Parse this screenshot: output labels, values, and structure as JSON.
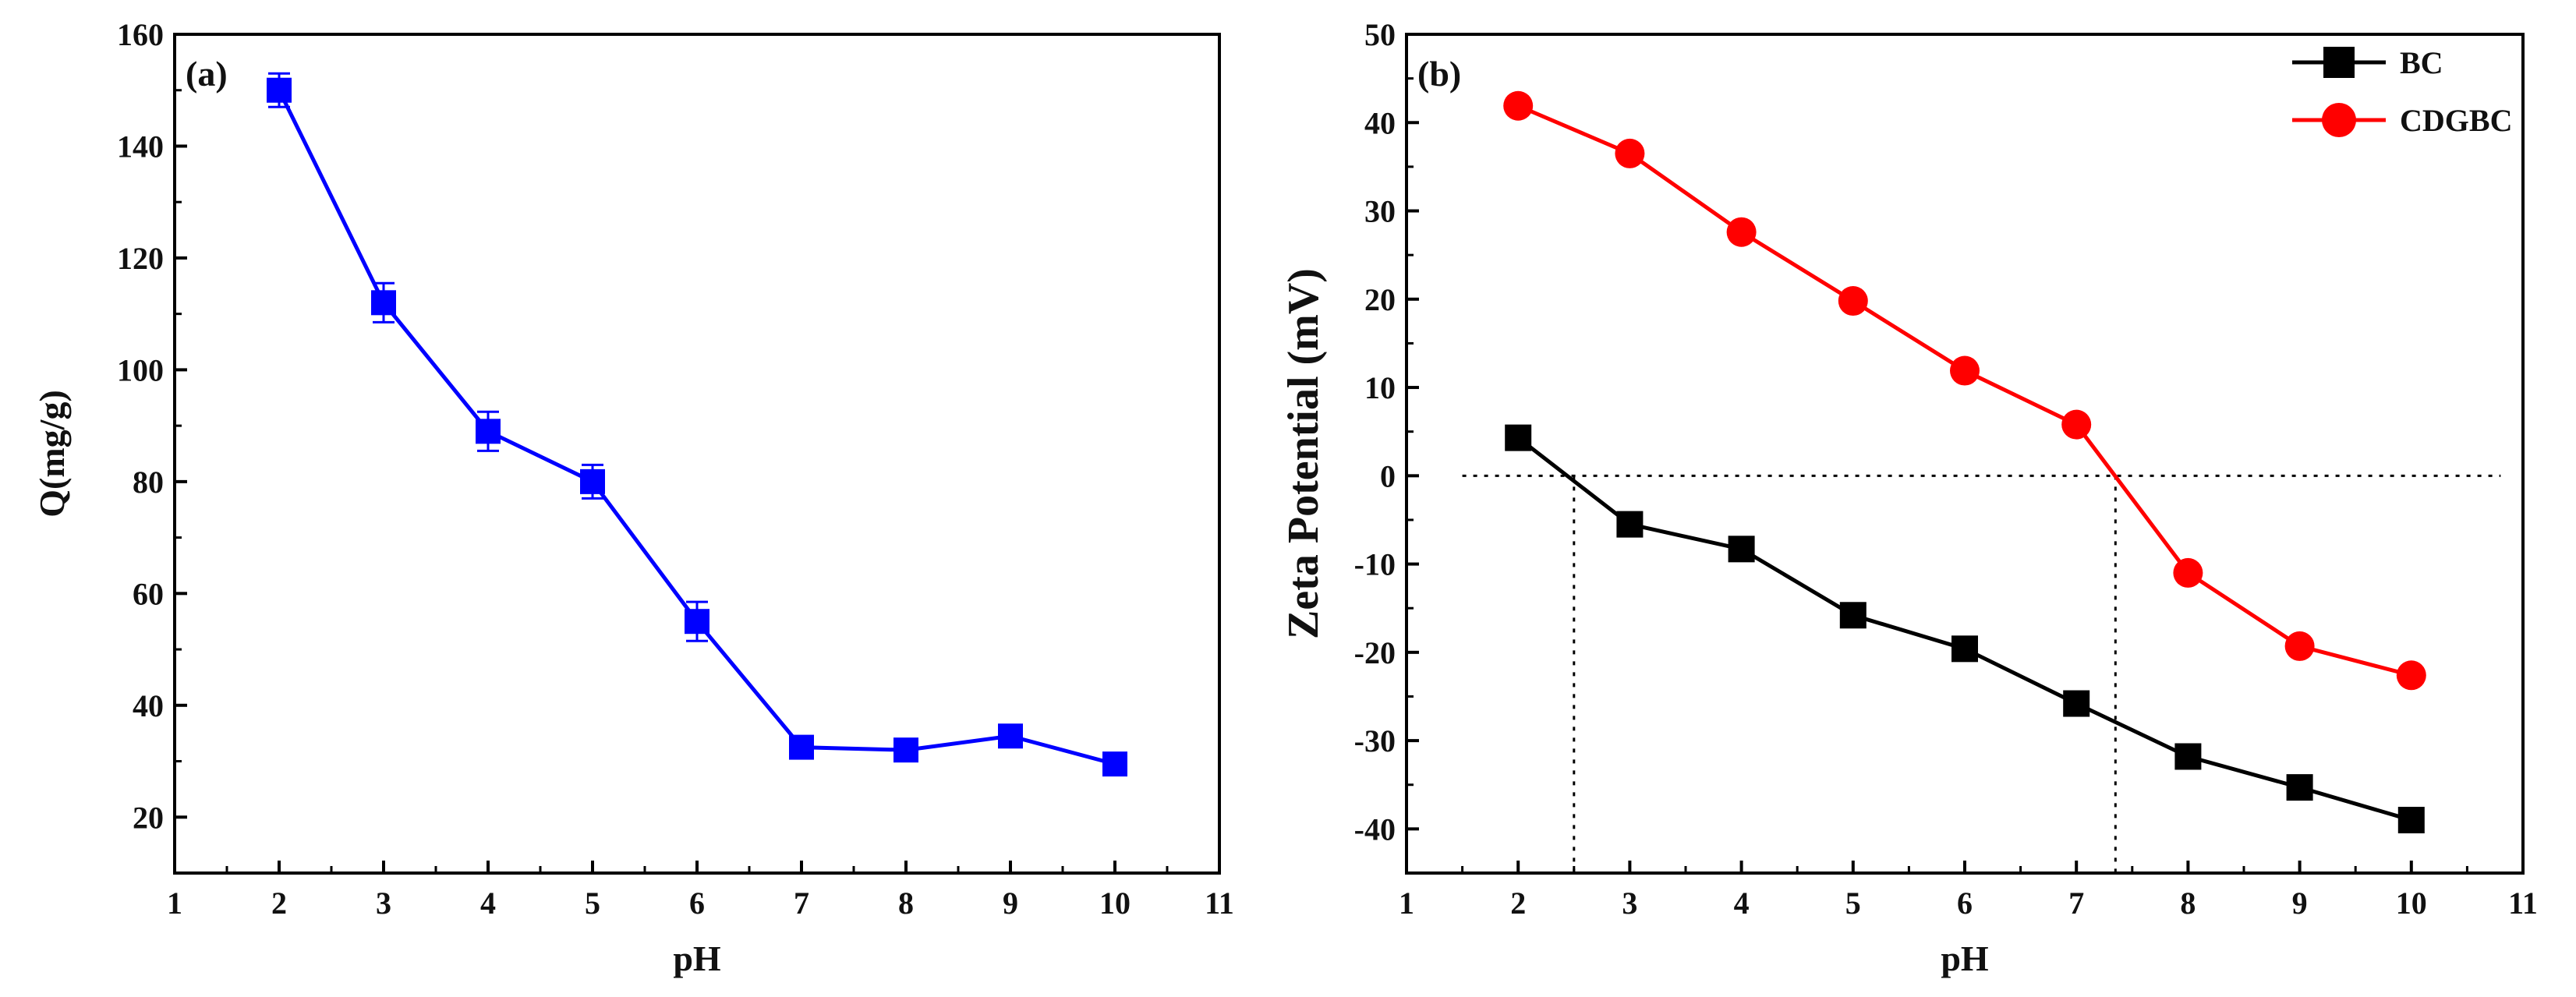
{
  "colors": {
    "panel_a_series": "#0000ff",
    "bc": "#000000",
    "cdgbc": "#ff0000"
  },
  "chart_data": [
    {
      "type": "line",
      "panel_label": "(a)",
      "xlabel": "pH",
      "ylabel": "Q(mg/g)",
      "xlim": [
        1,
        11
      ],
      "ylim": [
        10,
        160
      ],
      "x_ticks": [
        1,
        2,
        3,
        4,
        5,
        6,
        7,
        8,
        9,
        10,
        11
      ],
      "y_ticks": [
        20,
        40,
        60,
        80,
        100,
        120,
        140,
        160
      ],
      "series": [
        {
          "name": "Q",
          "marker": "square",
          "color": "#0000ff",
          "x": [
            2,
            3,
            4,
            5,
            6,
            7,
            8,
            9,
            10
          ],
          "values": [
            150,
            112,
            89,
            80,
            55,
            32.5,
            32,
            34.5,
            29.5
          ],
          "errors": [
            3,
            3.5,
            3.5,
            3,
            3.5,
            1.5,
            1.5,
            1.5,
            1.5
          ]
        }
      ]
    },
    {
      "type": "line",
      "panel_label": "(b)",
      "xlabel": "pH",
      "ylabel": "Zeta Potential (mV)",
      "xlim": [
        1,
        11
      ],
      "ylim": [
        -45,
        50
      ],
      "x_ticks": [
        1,
        2,
        3,
        4,
        5,
        6,
        7,
        8,
        9,
        10,
        11
      ],
      "y_ticks": [
        -40,
        -30,
        -20,
        -10,
        0,
        10,
        20,
        30,
        40,
        50
      ],
      "legend_position": "top-right",
      "zero_line": 0,
      "isoelectric_points": [
        2.5,
        7.35
      ],
      "series": [
        {
          "name": "BC",
          "marker": "square",
          "color": "#000000",
          "x": [
            2,
            3,
            4,
            5,
            6,
            7,
            8,
            9,
            10
          ],
          "values": [
            4.3,
            -5.5,
            -8.3,
            -15.8,
            -19.6,
            -25.8,
            -31.8,
            -35.3,
            -39
          ]
        },
        {
          "name": "CDGBC",
          "marker": "circle",
          "color": "#ff0000",
          "x": [
            2,
            3,
            4,
            5,
            6,
            7,
            8,
            9,
            10
          ],
          "values": [
            41.9,
            36.5,
            27.6,
            19.8,
            11.9,
            5.8,
            -11,
            -19.3,
            -22.6
          ]
        }
      ]
    }
  ]
}
